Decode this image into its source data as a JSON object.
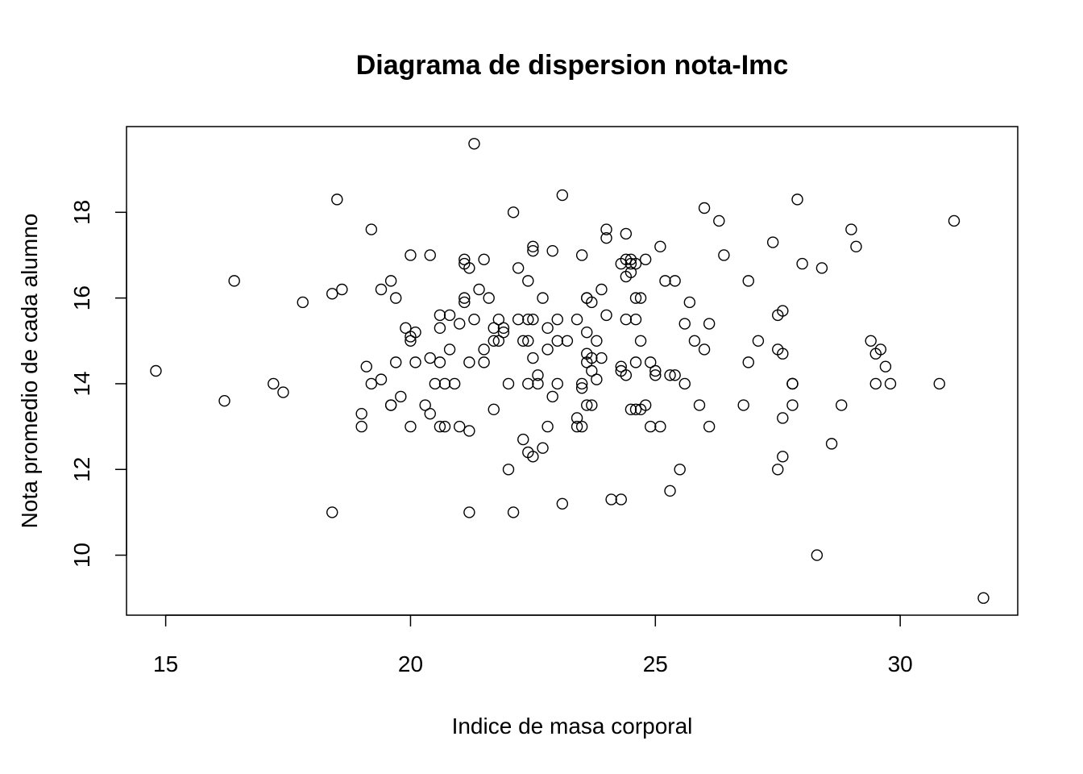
{
  "chart_data": {
    "type": "scatter",
    "title": "Diagrama de dispersion nota-Imc",
    "xlabel": "Indice de masa corporal",
    "ylabel": "Nota promedio de cada alumno",
    "xlim": [
      14.2,
      32.4
    ],
    "ylim": [
      8.6,
      20.0
    ],
    "xticks": [
      15,
      20,
      25,
      30
    ],
    "yticks": [
      10,
      12,
      14,
      16,
      18
    ],
    "grid": false,
    "marker": "open-circle",
    "points": [
      [
        14.8,
        14.3
      ],
      [
        16.2,
        13.6
      ],
      [
        16.4,
        16.4
      ],
      [
        17.2,
        14.0
      ],
      [
        17.4,
        13.8
      ],
      [
        17.8,
        15.9
      ],
      [
        18.4,
        11.0
      ],
      [
        18.4,
        16.1
      ],
      [
        18.5,
        18.3
      ],
      [
        18.6,
        16.2
      ],
      [
        19.0,
        13.3
      ],
      [
        19.0,
        13.0
      ],
      [
        19.1,
        14.4
      ],
      [
        19.2,
        14.0
      ],
      [
        19.2,
        17.6
      ],
      [
        19.4,
        14.1
      ],
      [
        19.4,
        16.2
      ],
      [
        19.6,
        16.4
      ],
      [
        19.6,
        13.5
      ],
      [
        19.6,
        13.5
      ],
      [
        19.7,
        14.5
      ],
      [
        19.7,
        16.0
      ],
      [
        19.8,
        13.7
      ],
      [
        19.9,
        15.3
      ],
      [
        20.0,
        17.0
      ],
      [
        20.0,
        15.0
      ],
      [
        20.0,
        15.1
      ],
      [
        20.0,
        13.0
      ],
      [
        20.1,
        14.5
      ],
      [
        20.1,
        15.2
      ],
      [
        20.3,
        13.5
      ],
      [
        20.4,
        17.0
      ],
      [
        20.4,
        14.6
      ],
      [
        20.4,
        13.3
      ],
      [
        20.5,
        14.0
      ],
      [
        20.6,
        15.6
      ],
      [
        20.6,
        14.5
      ],
      [
        20.6,
        13.0
      ],
      [
        20.6,
        15.3
      ],
      [
        20.7,
        14.0
      ],
      [
        20.7,
        13.0
      ],
      [
        20.8,
        15.6
      ],
      [
        20.8,
        14.8
      ],
      [
        20.9,
        14.0
      ],
      [
        21.0,
        15.4
      ],
      [
        21.0,
        13.0
      ],
      [
        21.1,
        16.9
      ],
      [
        21.1,
        16.8
      ],
      [
        21.1,
        16.0
      ],
      [
        21.1,
        15.9
      ],
      [
        21.2,
        14.5
      ],
      [
        21.2,
        12.9
      ],
      [
        21.2,
        16.7
      ],
      [
        21.2,
        11.0
      ],
      [
        21.3,
        19.6
      ],
      [
        21.3,
        15.5
      ],
      [
        21.4,
        16.2
      ],
      [
        21.5,
        14.8
      ],
      [
        21.5,
        16.9
      ],
      [
        21.5,
        14.5
      ],
      [
        21.6,
        16.0
      ],
      [
        21.7,
        15.3
      ],
      [
        21.7,
        15.0
      ],
      [
        21.7,
        13.4
      ],
      [
        21.8,
        15.5
      ],
      [
        21.8,
        15.0
      ],
      [
        21.9,
        15.3
      ],
      [
        21.9,
        15.2
      ],
      [
        22.0,
        14.0
      ],
      [
        22.0,
        12.0
      ],
      [
        22.1,
        18.0
      ],
      [
        22.1,
        11.0
      ],
      [
        22.2,
        16.7
      ],
      [
        22.2,
        15.5
      ],
      [
        22.3,
        15.0
      ],
      [
        22.3,
        12.7
      ],
      [
        22.4,
        15.0
      ],
      [
        22.4,
        14.0
      ],
      [
        22.4,
        12.4
      ],
      [
        22.4,
        15.5
      ],
      [
        22.4,
        16.4
      ],
      [
        22.5,
        14.6
      ],
      [
        22.5,
        12.3
      ],
      [
        22.5,
        15.5
      ],
      [
        22.5,
        17.2
      ],
      [
        22.5,
        17.1
      ],
      [
        22.6,
        14.2
      ],
      [
        22.6,
        14.0
      ],
      [
        22.7,
        16.0
      ],
      [
        22.7,
        12.5
      ],
      [
        22.8,
        14.8
      ],
      [
        22.8,
        13.0
      ],
      [
        22.8,
        15.3
      ],
      [
        22.9,
        13.7
      ],
      [
        22.9,
        17.1
      ],
      [
        23.0,
        14.0
      ],
      [
        23.0,
        15.5
      ],
      [
        23.0,
        15.0
      ],
      [
        23.1,
        18.4
      ],
      [
        23.1,
        11.2
      ],
      [
        23.2,
        15.0
      ],
      [
        23.4,
        13.2
      ],
      [
        23.4,
        13.0
      ],
      [
        23.4,
        15.5
      ],
      [
        23.5,
        17.0
      ],
      [
        23.5,
        13.0
      ],
      [
        23.5,
        14.0
      ],
      [
        23.5,
        13.9
      ],
      [
        23.6,
        15.2
      ],
      [
        23.6,
        16.0
      ],
      [
        23.6,
        16.0
      ],
      [
        23.6,
        14.7
      ],
      [
        23.6,
        13.5
      ],
      [
        23.6,
        14.5
      ],
      [
        23.7,
        15.9
      ],
      [
        23.7,
        14.6
      ],
      [
        23.7,
        14.3
      ],
      [
        23.7,
        13.5
      ],
      [
        23.8,
        15.0
      ],
      [
        23.8,
        14.1
      ],
      [
        23.9,
        14.6
      ],
      [
        23.9,
        16.2
      ],
      [
        24.0,
        17.6
      ],
      [
        24.0,
        17.4
      ],
      [
        24.0,
        15.6
      ],
      [
        24.1,
        11.3
      ],
      [
        24.3,
        11.3
      ],
      [
        24.3,
        14.4
      ],
      [
        24.3,
        16.8
      ],
      [
        24.3,
        14.3
      ],
      [
        24.4,
        15.5
      ],
      [
        24.4,
        17.5
      ],
      [
        24.4,
        14.2
      ],
      [
        24.4,
        16.9
      ],
      [
        24.4,
        16.5
      ],
      [
        24.5,
        16.8
      ],
      [
        24.5,
        16.6
      ],
      [
        24.5,
        13.4
      ],
      [
        24.5,
        16.9
      ],
      [
        24.6,
        14.5
      ],
      [
        24.6,
        16.8
      ],
      [
        24.6,
        13.4
      ],
      [
        24.6,
        15.5
      ],
      [
        24.6,
        16.0
      ],
      [
        24.7,
        15.0
      ],
      [
        24.7,
        16.0
      ],
      [
        24.7,
        13.4
      ],
      [
        24.8,
        16.9
      ],
      [
        24.8,
        13.5
      ],
      [
        24.9,
        14.5
      ],
      [
        24.9,
        13.0
      ],
      [
        25.0,
        14.3
      ],
      [
        25.0,
        14.2
      ],
      [
        25.1,
        17.2
      ],
      [
        25.1,
        13.0
      ],
      [
        25.2,
        16.4
      ],
      [
        25.3,
        14.2
      ],
      [
        25.3,
        11.5
      ],
      [
        25.4,
        16.4
      ],
      [
        25.4,
        14.2
      ],
      [
        25.5,
        12.0
      ],
      [
        25.6,
        14.0
      ],
      [
        25.6,
        15.4
      ],
      [
        25.7,
        15.9
      ],
      [
        25.8,
        15.0
      ],
      [
        25.9,
        13.5
      ],
      [
        26.0,
        14.8
      ],
      [
        26.0,
        18.1
      ],
      [
        26.1,
        13.0
      ],
      [
        26.1,
        15.4
      ],
      [
        26.3,
        17.8
      ],
      [
        26.4,
        17.0
      ],
      [
        26.8,
        13.5
      ],
      [
        26.9,
        16.4
      ],
      [
        26.9,
        14.5
      ],
      [
        27.1,
        15.0
      ],
      [
        27.4,
        17.3
      ],
      [
        27.5,
        12.0
      ],
      [
        27.5,
        14.8
      ],
      [
        27.5,
        15.6
      ],
      [
        27.6,
        15.7
      ],
      [
        27.6,
        14.7
      ],
      [
        27.6,
        13.2
      ],
      [
        27.6,
        12.3
      ],
      [
        27.8,
        14.0
      ],
      [
        27.8,
        14.0
      ],
      [
        27.8,
        13.5
      ],
      [
        27.8,
        14.0
      ],
      [
        27.9,
        18.3
      ],
      [
        28.0,
        16.8
      ],
      [
        28.3,
        10.0
      ],
      [
        28.4,
        16.7
      ],
      [
        28.6,
        12.6
      ],
      [
        28.8,
        13.5
      ],
      [
        29.0,
        17.6
      ],
      [
        29.1,
        17.2
      ],
      [
        29.4,
        15.0
      ],
      [
        29.5,
        14.7
      ],
      [
        29.5,
        14.0
      ],
      [
        29.6,
        14.8
      ],
      [
        29.7,
        14.4
      ],
      [
        29.8,
        14.0
      ],
      [
        30.8,
        14.0
      ],
      [
        31.1,
        17.8
      ],
      [
        31.7,
        9.0
      ]
    ]
  }
}
